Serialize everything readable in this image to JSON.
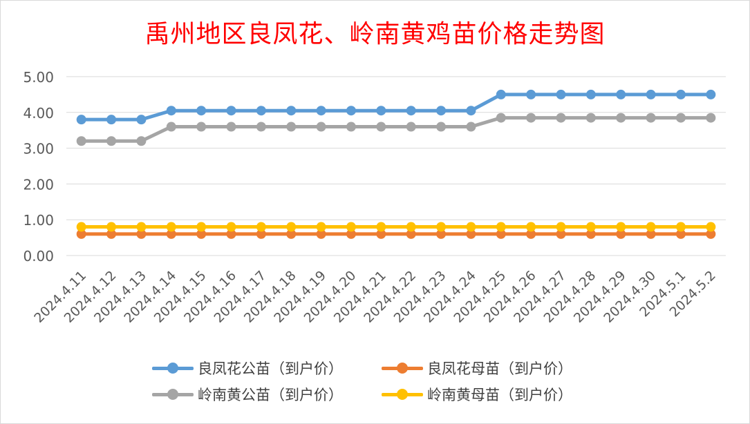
{
  "chart_data": {
    "type": "line",
    "title": "禹州地区良凤花、岭南黄鸡苗价格走势图",
    "xlabel": "",
    "ylabel": "",
    "ylim": [
      0,
      5
    ],
    "yticks": [
      "0.00",
      "1.00",
      "2.00",
      "3.00",
      "4.00",
      "5.00"
    ],
    "grid": true,
    "legend_position": "bottom",
    "categories": [
      "2024.4.11",
      "2024.4.12",
      "2024.4.13",
      "2024.4.14",
      "2024.4.15",
      "2024.4.16",
      "2024.4.17",
      "2024.4.18",
      "2024.4.19",
      "2024.4.20",
      "2024.4.21",
      "2024.4.22",
      "2024.4.23",
      "2024.4.24",
      "2024.4.25",
      "2024.4.26",
      "2024.4.27",
      "2024.4.28",
      "2024.4.29",
      "2024.4.30",
      "2024.5.1",
      "2024.5.2"
    ],
    "series": [
      {
        "name": "良凤花公苗（到户价）",
        "color": "#5b9bd5",
        "values": [
          3.8,
          3.8,
          3.8,
          4.05,
          4.05,
          4.05,
          4.05,
          4.05,
          4.05,
          4.05,
          4.05,
          4.05,
          4.05,
          4.05,
          4.5,
          4.5,
          4.5,
          4.5,
          4.5,
          4.5,
          4.5,
          4.5
        ]
      },
      {
        "name": "良凤花母苗（到户价）",
        "color": "#ed7d31",
        "values": [
          0.6,
          0.6,
          0.6,
          0.6,
          0.6,
          0.6,
          0.6,
          0.6,
          0.6,
          0.6,
          0.6,
          0.6,
          0.6,
          0.6,
          0.6,
          0.6,
          0.6,
          0.6,
          0.6,
          0.6,
          0.6,
          0.6
        ]
      },
      {
        "name": "岭南黄公苗（到户价）",
        "color": "#a5a5a5",
        "values": [
          3.2,
          3.2,
          3.2,
          3.6,
          3.6,
          3.6,
          3.6,
          3.6,
          3.6,
          3.6,
          3.6,
          3.6,
          3.6,
          3.6,
          3.85,
          3.85,
          3.85,
          3.85,
          3.85,
          3.85,
          3.85,
          3.85
        ]
      },
      {
        "name": "岭南黄母苗（到户价）",
        "color": "#ffc000",
        "values": [
          0.8,
          0.8,
          0.8,
          0.8,
          0.8,
          0.8,
          0.8,
          0.8,
          0.8,
          0.8,
          0.8,
          0.8,
          0.8,
          0.8,
          0.8,
          0.8,
          0.8,
          0.8,
          0.8,
          0.8,
          0.8,
          0.8
        ]
      }
    ]
  }
}
